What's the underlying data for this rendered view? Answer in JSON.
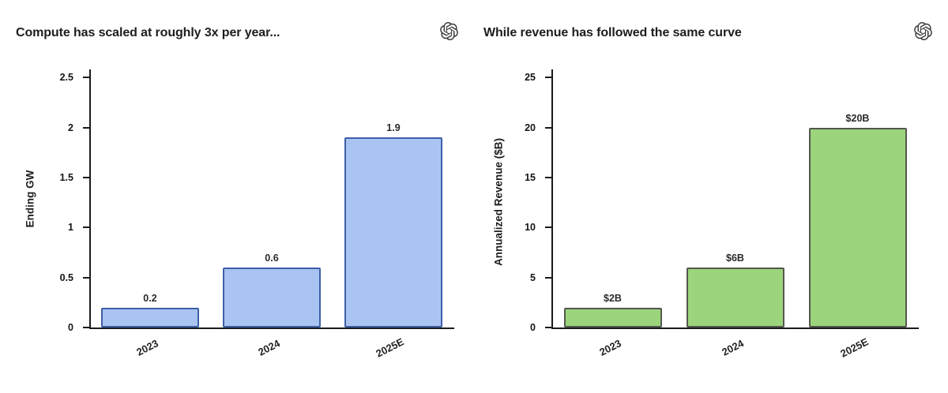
{
  "page": {
    "background": "#ffffff"
  },
  "chart_data": [
    {
      "type": "bar",
      "title": "Compute has scaled at roughly 3x per year...",
      "logo_icon": "openai-logo",
      "categories": [
        "2023",
        "2024",
        "2025E"
      ],
      "values": [
        0.2,
        0.6,
        1.9
      ],
      "value_labels": [
        "0.2",
        "0.6",
        "1.9"
      ],
      "xlabel": "",
      "ylabel": "Ending GW",
      "ylim": [
        0,
        2.58
      ],
      "yticks": [
        0,
        0.5,
        1,
        1.5,
        2,
        2.5
      ],
      "ytick_labels": [
        "0",
        "0.5",
        "1",
        "1.5",
        "2",
        "2.5"
      ],
      "grid": false,
      "legend": null,
      "bar_color": "#aac4f1",
      "bar_edge_color": "#3d5fa9",
      "xtick_rotation_deg": 27
    },
    {
      "type": "bar",
      "title": "While revenue has followed the same curve",
      "logo_icon": "openai-logo",
      "categories": [
        "2023",
        "2024",
        "2025E"
      ],
      "values": [
        2,
        6,
        20
      ],
      "value_labels": [
        "$2B",
        "$6B",
        "$20B"
      ],
      "xlabel": "",
      "ylabel": "Annualized Revenue ($B)",
      "ylim": [
        0,
        25.8
      ],
      "yticks": [
        0,
        5,
        10,
        15,
        20,
        25
      ],
      "ytick_labels": [
        "0",
        "5",
        "10",
        "15",
        "20",
        "25"
      ],
      "grid": false,
      "legend": null,
      "bar_color": "#9cd47c",
      "bar_edge_color": "#53584f",
      "xtick_rotation_deg": 27
    }
  ]
}
